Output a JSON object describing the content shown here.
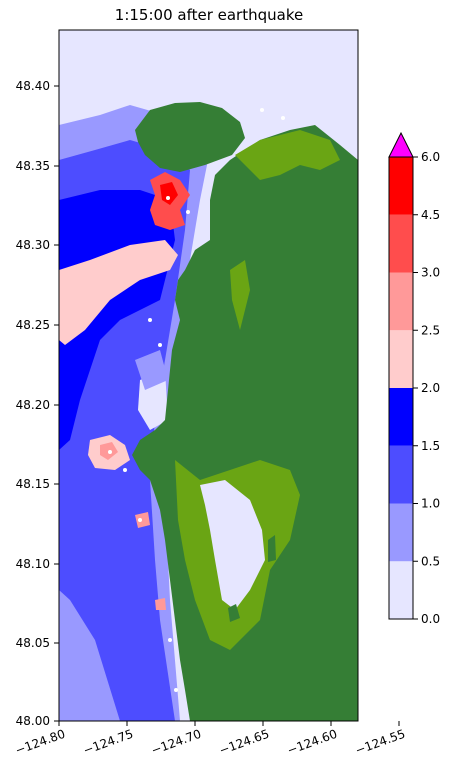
{
  "title": "1:15:00 after earthquake",
  "axes": {
    "x_ticks": [
      "−124.80",
      "−124.75",
      "−124.70",
      "−124.65",
      "−124.60",
      "−124.55"
    ],
    "y_ticks": [
      "48.40",
      "48.35",
      "48.30",
      "48.25",
      "48.20",
      "48.15",
      "48.10",
      "48.05",
      "48.00"
    ]
  },
  "colorbar": {
    "levels": [
      "0.0",
      "0.5",
      "1.0",
      "1.5",
      "2.0",
      "2.5",
      "3.0",
      "4.5",
      "6.0"
    ],
    "colors": [
      "#e6e6ff",
      "#9999ff",
      "#4d4dff",
      "#0000ff",
      "#ffcccc",
      "#ff9999",
      "#ff4d4d",
      "#ff0000"
    ],
    "extend_color": "#ff00ff"
  },
  "map_colors": {
    "land": "#357e35",
    "shore_vegetation": "#6aa514",
    "water_levels": [
      "#e6e6ff",
      "#9999ff",
      "#4d4dff",
      "#0000ff",
      "#ffcccc",
      "#ff9999",
      "#ff4d4d",
      "#ff0000"
    ]
  }
}
